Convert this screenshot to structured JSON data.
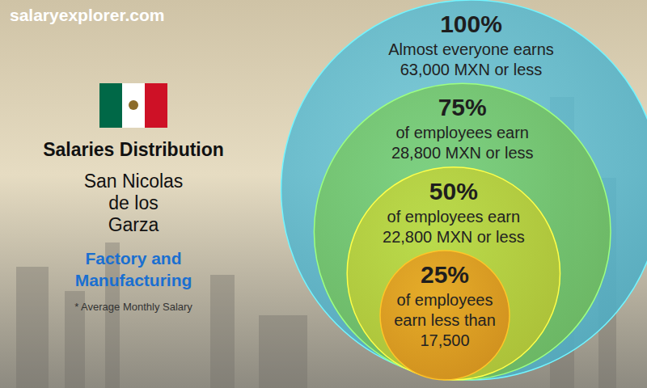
{
  "chart_data": {
    "type": "nested_circles",
    "site": "salaryexplorer.com",
    "title": "Salaries Distribution",
    "subtitle": [
      "San Nicolas",
      "de los",
      "Garza"
    ],
    "category": [
      "Factory and",
      "Manufacturing"
    ],
    "note": "* Average Monthly Salary",
    "values": [
      100,
      75,
      50,
      25
    ],
    "value_labels": [
      "100%",
      "75%",
      "50%",
      "25%"
    ],
    "descriptions": [
      [
        "Almost everyone earns",
        "63,000 MXN or less"
      ],
      [
        "of employees earn",
        "28,800 MXN or less"
      ],
      [
        "of employees earn",
        "22,800 MXN or less"
      ],
      [
        "of employees",
        "earn less than",
        "17,500"
      ]
    ],
    "colors": [
      "#5cc6e0",
      "#7fd468",
      "#cfe03c",
      "#f5a020"
    ]
  }
}
